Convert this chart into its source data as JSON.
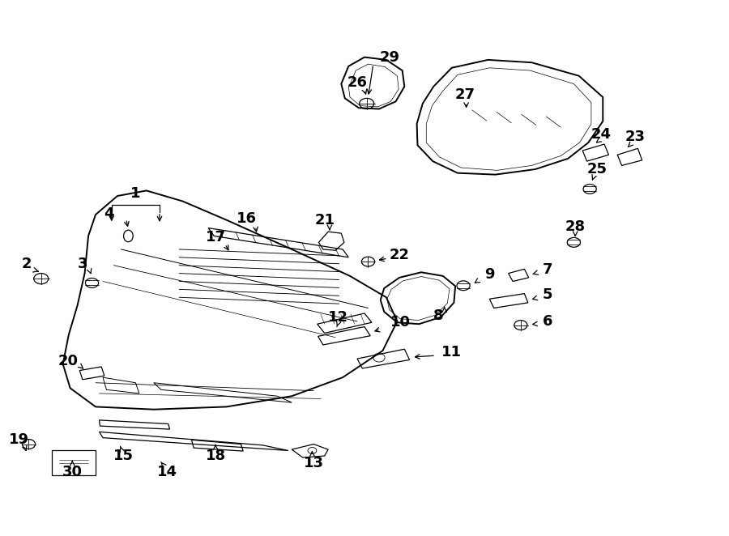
{
  "background_color": "#ffffff",
  "line_color": "#000000",
  "fig_width": 9.0,
  "fig_height": 6.62,
  "dpi": 100,
  "part_label_fontsize": 13
}
